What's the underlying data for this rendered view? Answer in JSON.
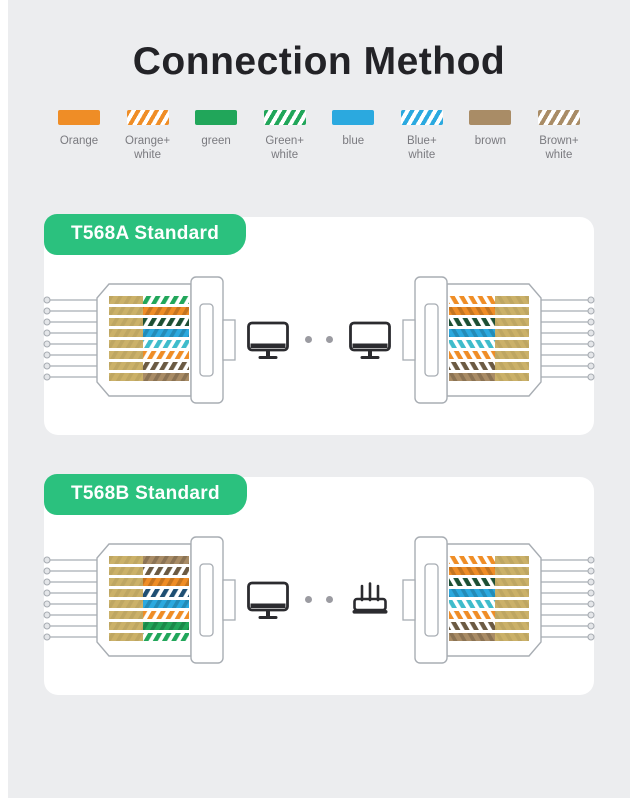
{
  "title": "Connection Method",
  "colors": {
    "page_bg": "#ECEDEF",
    "card_bg": "#FFFFFF",
    "title_text": "#232327",
    "legend_text": "#7A7A7F",
    "badge_bg": "#2BC17E",
    "badge_text": "#FFFFFF",
    "outline": "#A8ADB3",
    "icon": "#2B2B2F",
    "dot": "#9B9BA1",
    "wire": {
      "orange": "#EF8D26",
      "green": "#21A65A",
      "darkgreen": "#1C4F33",
      "blue": "#2BA9DF",
      "darkblue": "#1E4E72",
      "cyan": "#3FBCCB",
      "brown": "#A98C66",
      "darkbrown": "#6B5A43",
      "tan": "#CBB169"
    }
  },
  "legend": [
    {
      "swatch": "solid",
      "color": "orange",
      "line1": "Orange",
      "line2": ""
    },
    {
      "swatch": "striped",
      "color": "orange",
      "line1": "Orange+",
      "line2": "white"
    },
    {
      "swatch": "solid",
      "color": "green",
      "line1": "green",
      "line2": ""
    },
    {
      "swatch": "striped",
      "color": "green",
      "line1": "Green+",
      "line2": "white"
    },
    {
      "swatch": "solid",
      "color": "blue",
      "line1": "blue",
      "line2": ""
    },
    {
      "swatch": "striped",
      "color": "blue",
      "line1": "Blue+",
      "line2": "white"
    },
    {
      "swatch": "solid",
      "color": "brown",
      "line1": "brown",
      "line2": ""
    },
    {
      "swatch": "striped",
      "color": "brown",
      "line1": "Brown+",
      "line2": "white"
    }
  ],
  "sections": [
    {
      "badge": "T568A Standard",
      "devices": [
        "computer",
        "computer"
      ],
      "left_wires": [
        {
          "p": "striped",
          "c": "green"
        },
        {
          "p": "solid",
          "c": "orange"
        },
        {
          "p": "striped",
          "c": "darkgreen"
        },
        {
          "p": "solid",
          "c": "blue"
        },
        {
          "p": "striped",
          "c": "cyan"
        },
        {
          "p": "striped",
          "c": "orange"
        },
        {
          "p": "striped",
          "c": "darkbrown"
        },
        {
          "p": "solid",
          "c": "brown"
        }
      ],
      "right_wires": [
        {
          "p": "striped",
          "c": "orange"
        },
        {
          "p": "solid",
          "c": "orange"
        },
        {
          "p": "striped",
          "c": "darkgreen"
        },
        {
          "p": "solid",
          "c": "blue"
        },
        {
          "p": "striped",
          "c": "cyan"
        },
        {
          "p": "striped",
          "c": "orange"
        },
        {
          "p": "striped",
          "c": "darkbrown"
        },
        {
          "p": "solid",
          "c": "brown"
        }
      ]
    },
    {
      "badge": "T568B Standard",
      "devices": [
        "computer",
        "router"
      ],
      "left_wires": [
        {
          "p": "solid",
          "c": "brown"
        },
        {
          "p": "striped",
          "c": "darkbrown"
        },
        {
          "p": "solid",
          "c": "orange"
        },
        {
          "p": "striped",
          "c": "darkblue"
        },
        {
          "p": "solid",
          "c": "blue"
        },
        {
          "p": "striped",
          "c": "orange"
        },
        {
          "p": "solid",
          "c": "green"
        },
        {
          "p": "striped",
          "c": "green"
        }
      ],
      "right_wires": [
        {
          "p": "striped",
          "c": "orange"
        },
        {
          "p": "solid",
          "c": "orange"
        },
        {
          "p": "striped",
          "c": "darkgreen"
        },
        {
          "p": "solid",
          "c": "blue"
        },
        {
          "p": "striped",
          "c": "cyan"
        },
        {
          "p": "striped",
          "c": "orange"
        },
        {
          "p": "striped",
          "c": "darkbrown"
        },
        {
          "p": "solid",
          "c": "brown"
        }
      ]
    }
  ]
}
